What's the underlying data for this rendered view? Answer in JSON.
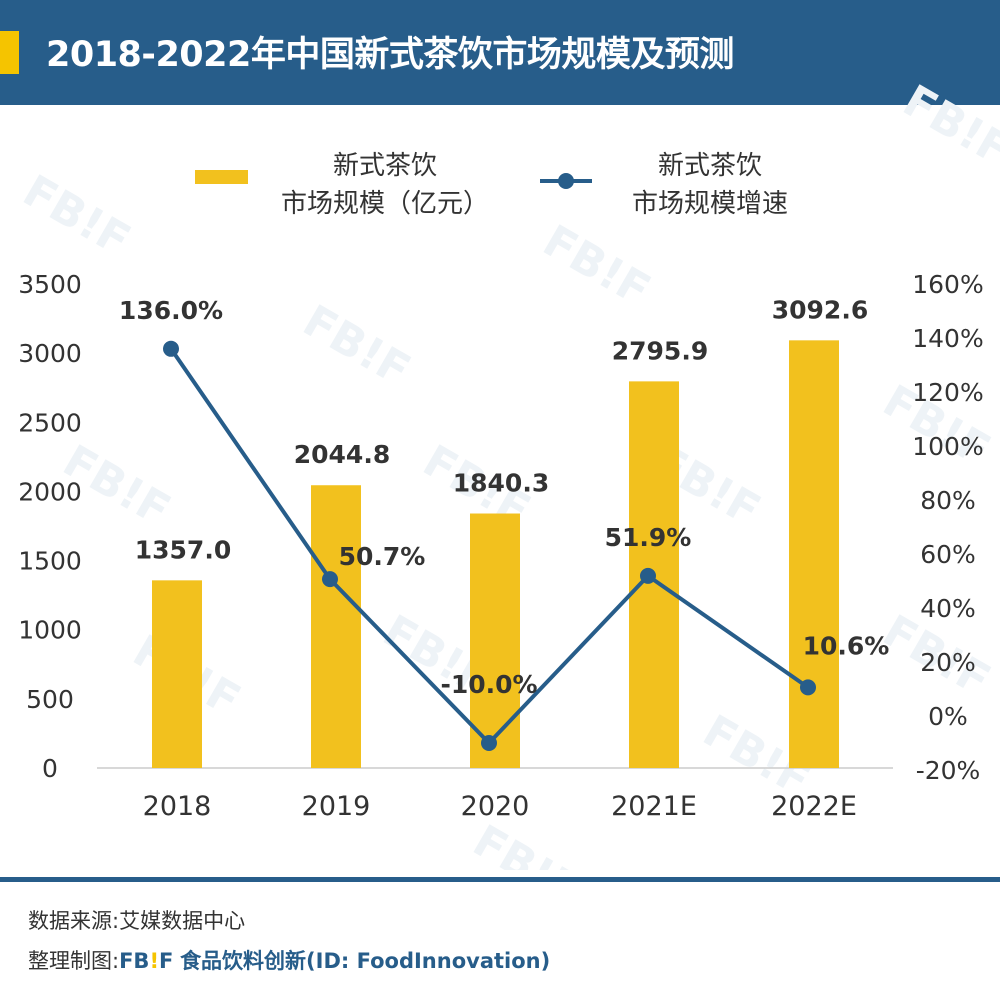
{
  "header": {
    "title": "2018-2022年中国新式茶饮市场规模及预测"
  },
  "legend": {
    "bar_label_line1": "新式茶饮",
    "bar_label_line2": "市场规模（亿元）",
    "line_label_line1": "新式茶饮",
    "line_label_line2": "市场规模增速"
  },
  "chart_data": {
    "type": "bar+line",
    "categories": [
      "2018",
      "2019",
      "2020",
      "2021E",
      "2022E"
    ],
    "series": [
      {
        "name": "新式茶饮市场规模（亿元）",
        "type": "bar",
        "axis": "left",
        "values": [
          1357.0,
          2044.8,
          1840.3,
          2795.9,
          3092.6
        ],
        "labels": [
          "1357.0",
          "2044.8",
          "1840.3",
          "2795.9",
          "3092.6"
        ],
        "color": "#f2c11e"
      },
      {
        "name": "新式茶饮市场规模增速",
        "type": "line",
        "axis": "right",
        "values": [
          136.0,
          50.7,
          -10.0,
          51.9,
          10.6
        ],
        "labels": [
          "136.0%",
          "50.7%",
          "-10.0%",
          "51.9%",
          "10.6%"
        ],
        "color": "#275d8a"
      }
    ],
    "left_axis": {
      "ylim": [
        0,
        3500
      ],
      "ticks": [
        "0",
        "500",
        "1000",
        "1500",
        "2000",
        "2500",
        "3000",
        "3500"
      ]
    },
    "right_axis": {
      "ylim": [
        -20,
        160
      ],
      "ticks": [
        "-20%",
        "0%",
        "20%",
        "40%",
        "60%",
        "80%",
        "100%",
        "120%",
        "140%",
        "160%"
      ]
    },
    "grid": false,
    "legend_position": "top"
  },
  "footer": {
    "source": "数据来源:艾媒数据中心",
    "credit_prefix": "整理制图:",
    "brand_fb": "FB",
    "brand_excl": "!",
    "brand_f": "F",
    "credit_name": "食品饮料创新(ID: FoodInnovation)"
  },
  "watermark": "FB!F"
}
